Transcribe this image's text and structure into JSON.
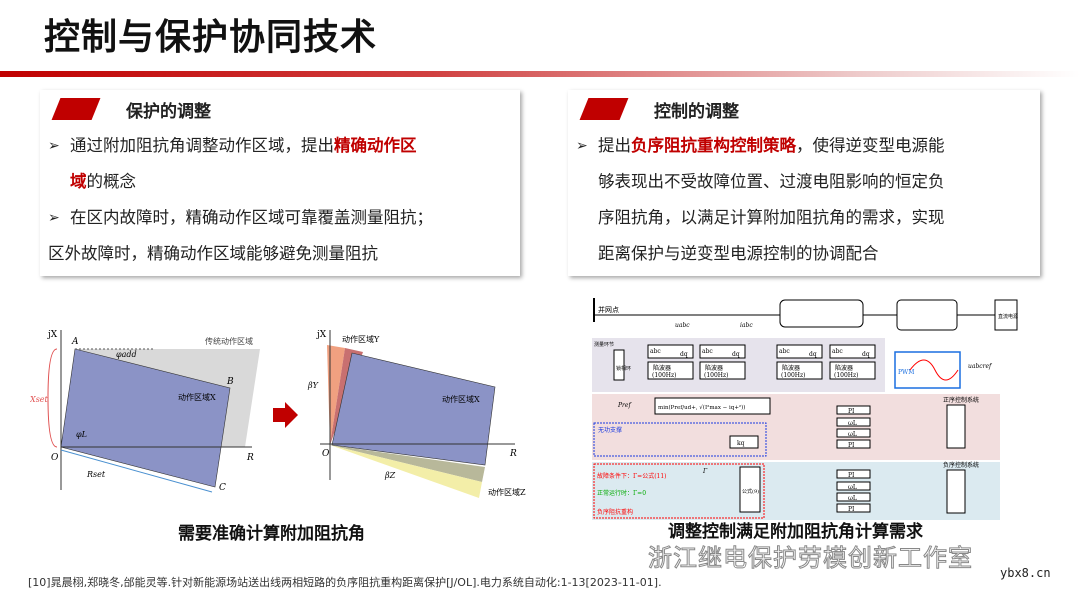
{
  "title": "控制与保护协同技术",
  "left_box": {
    "heading": "保护的调整",
    "b1_a": "通过附加阻抗角调整动作区域，提出",
    "b1_red": "精确动作区",
    "b1_red2": "域",
    "b1_b": "的概念",
    "b2_a": "在区内故障时，精确动作区域可靠覆盖测量阻抗；",
    "b2_b": "区外故障时，精确动作区域能够避免测量阻抗"
  },
  "right_box": {
    "heading": "控制的调整",
    "b1_a": "提出",
    "b1_red": "负序阻抗重构控制策略",
    "b1_b": "，使得逆变型电源能",
    "l2": "够表现出不受故障位置、过渡电阻影响的恒定负",
    "l3": "序阻抗角，以满足计算附加阻抗角的需求，实现",
    "l4": "距离保护与逆变型电源控制的协调配合"
  },
  "left_fig": {
    "caption": "需要准确计算附加阻抗角",
    "jx": "jX",
    "r": "R",
    "o": "O",
    "a": "A",
    "b": "B",
    "c": "C",
    "phi_add": "φadd",
    "phi_l": "φL",
    "xset": "Xset",
    "rset": "Rset",
    "traditional": "传统动作区域",
    "zone_x": "动作区域X",
    "zone_y": "动作区域Y",
    "zone_z": "动作区域Z",
    "beta_y": "βY",
    "beta_z": "βZ"
  },
  "right_fig": {
    "caption": "调整控制满足附加阻抗角计算需求",
    "pcc": "并网点",
    "u_abc": "uabc",
    "i_abc": "iabc",
    "abc": "abc",
    "dq": "dq",
    "trap": "陷波器",
    "trap_f": "(100Hz)",
    "pll": "锁相环",
    "pll_side": "测量环节",
    "dc": "直流电源",
    "pwm": "PWM",
    "u_ref": "uabcref",
    "pos_sys": "正序控制系统",
    "neg_sys": "负序控制系统",
    "pi": "PI",
    "wl": "ωL",
    "pref": "Pref",
    "min_expr": "min(Pref/ud+, √(I²max − iq+²))",
    "reactive": "无功支撑",
    "k": "kq",
    "fault": "故障条件下：Γ=公式(11)",
    "normal": "正常运行时：Γ=0",
    "neg_recon": "负序阻抗重构",
    "formula": "公式(9)",
    "gamma": "Γ"
  },
  "watermark": "浙江继电保护劳模创新工作室",
  "footer": "[10]晁晨栩,郑晓冬,邰能灵等.针对新能源场站送出线两相短路的负序阻抗重构距离保护[J/OL].电力系统自动化:1-13[2023-11-01].",
  "site": "ybx8.cn",
  "colors": {
    "accent": "#c00000",
    "zone_x": "#8b93c6",
    "traditional": "#d9d9d9"
  }
}
